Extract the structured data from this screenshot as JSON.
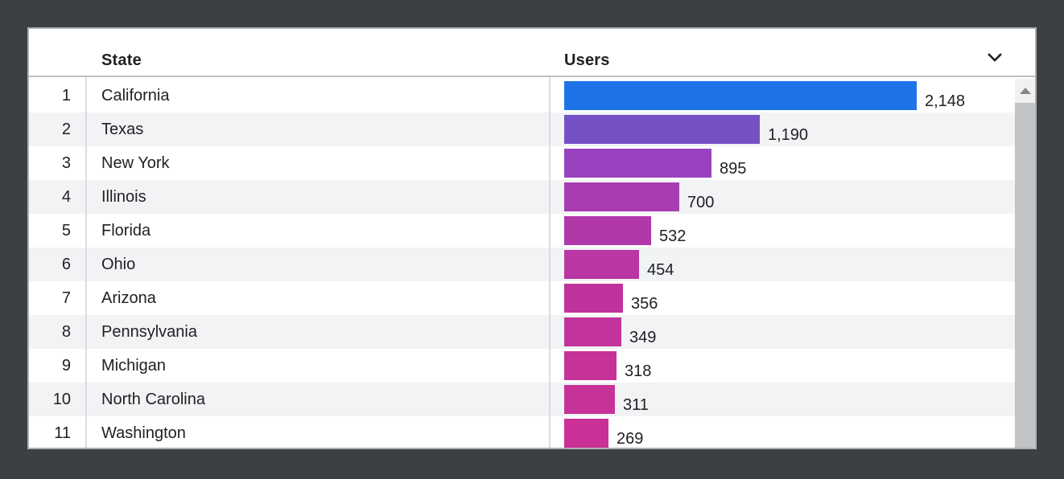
{
  "table": {
    "columns": [
      {
        "label": "State"
      },
      {
        "label": "Users"
      }
    ],
    "rows": [
      {
        "rank": "1",
        "state": "California",
        "users": "2,148",
        "value": 2148,
        "color": "#1e73e8"
      },
      {
        "rank": "2",
        "state": "Texas",
        "users": "1,190",
        "value": 1190,
        "color": "#7452c5"
      },
      {
        "rank": "3",
        "state": "New York",
        "users": "895",
        "value": 895,
        "color": "#9842bf"
      },
      {
        "rank": "4",
        "state": "Illinois",
        "users": "700",
        "value": 700,
        "color": "#a83cb1"
      },
      {
        "rank": "5",
        "state": "Florida",
        "users": "532",
        "value": 532,
        "color": "#b138a9"
      },
      {
        "rank": "6",
        "state": "Ohio",
        "users": "454",
        "value": 454,
        "color": "#b936a3"
      },
      {
        "rank": "7",
        "state": "Arizona",
        "users": "356",
        "value": 356,
        "color": "#c0339c"
      },
      {
        "rank": "8",
        "state": "Pennsylvania",
        "users": "349",
        "value": 349,
        "color": "#c2339b"
      },
      {
        "rank": "9",
        "state": "Michigan",
        "users": "318",
        "value": 318,
        "color": "#c53298"
      },
      {
        "rank": "10",
        "state": "North Carolina",
        "users": "311",
        "value": 311,
        "color": "#c63297"
      },
      {
        "rank": "11",
        "state": "Washington",
        "users": "269",
        "value": 269,
        "color": "#ca3095"
      }
    ]
  },
  "chart_data": {
    "type": "bar",
    "orientation": "horizontal",
    "categories": [
      "California",
      "Texas",
      "New York",
      "Illinois",
      "Florida",
      "Ohio",
      "Arizona",
      "Pennsylvania",
      "Michigan",
      "North Carolina",
      "Washington"
    ],
    "values": [
      2148,
      1190,
      895,
      700,
      532,
      454,
      356,
      349,
      318,
      311,
      269
    ],
    "value_labels": [
      "2,148",
      "1,190",
      "895",
      "700",
      "532",
      "454",
      "356",
      "349",
      "318",
      "311",
      "269"
    ],
    "bar_colors": [
      "#1e73e8",
      "#7452c5",
      "#9842bf",
      "#a83cb1",
      "#b138a9",
      "#b936a3",
      "#c0339c",
      "#c2339b",
      "#c53298",
      "#c63297",
      "#ca3095"
    ],
    "xlabel": "Users",
    "ylabel": "State",
    "xlim": [
      0,
      2148
    ],
    "gridlines": false,
    "legend": false,
    "data_labels": true
  },
  "icons": {
    "sort_chevron": "chevron-down-icon",
    "scroll_up": "scroll-up-arrow-icon"
  },
  "colors": {
    "outer_background": "#3c4043",
    "card_background": "#ffffff",
    "card_border": "#aeb1b3",
    "header_border": "#bdc0c2",
    "column_separator": "#dadce0",
    "row_stripe": "#f1f3f4",
    "text": "#202124",
    "bar_max_color": "#1e73e8",
    "bar_min_color": "#ca3095",
    "scrollbar_track": "#f1f1f1",
    "scrollbar_thumb": "#c2c3c5",
    "scrollbar_arrow": "#85888b"
  }
}
